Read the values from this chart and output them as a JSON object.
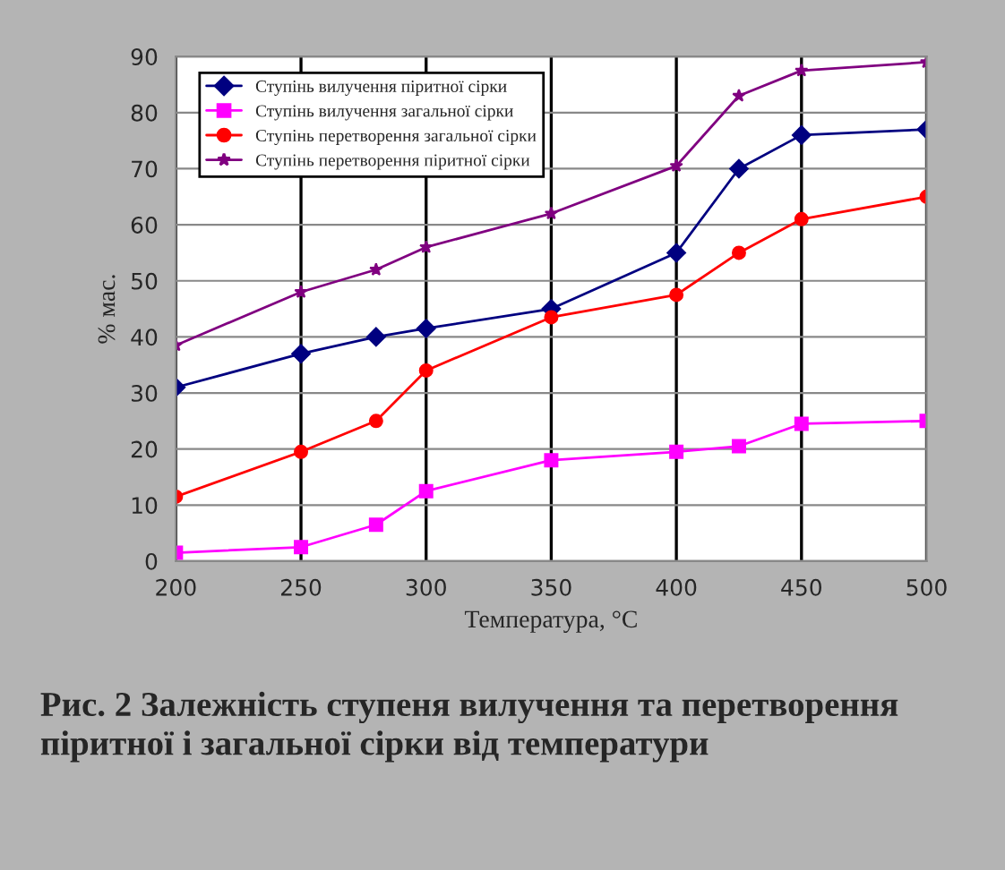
{
  "chart_data": {
    "type": "line",
    "xlabel": "Температура, °C",
    "ylabel": "% мас.",
    "x": [
      200,
      250,
      280,
      300,
      350,
      400,
      425,
      450,
      500
    ],
    "series": [
      {
        "name": "Ступінь вилучення піритної сірки",
        "color": "#000080",
        "marker": "diamond",
        "values": [
          31,
          37,
          40,
          41.5,
          45,
          55,
          70,
          76,
          77
        ]
      },
      {
        "name": "Ступінь вилучення загальної сірки",
        "color": "#ff00ff",
        "marker": "square",
        "values": [
          1.5,
          2.5,
          6.5,
          12.5,
          18,
          19.5,
          20.5,
          24.5,
          25
        ]
      },
      {
        "name": "Ступінь перетворення загальної сірки",
        "color": "#ff0000",
        "marker": "circle",
        "values": [
          11.5,
          19.5,
          25,
          34,
          43.5,
          47.5,
          55,
          61,
          65
        ]
      },
      {
        "name": "Ступінь перетворення піритної сірки",
        "color": "#800080",
        "marker": "star",
        "values": [
          38.5,
          48,
          52,
          56,
          62,
          70.5,
          83,
          87.5,
          89
        ]
      }
    ],
    "xlim": [
      200,
      500
    ],
    "xticks": [
      200,
      250,
      300,
      350,
      400,
      450,
      500
    ],
    "ylim": [
      0,
      90
    ],
    "yticks": [
      0,
      10,
      20,
      30,
      40,
      50,
      60,
      70,
      80,
      90
    ],
    "grid": true,
    "legend": "top left",
    "line_style": "solid",
    "annotations": [
      "Рис. 2 Залежність ступеня вилучення та перетворення піритної і загальної сірки від температури"
    ]
  }
}
